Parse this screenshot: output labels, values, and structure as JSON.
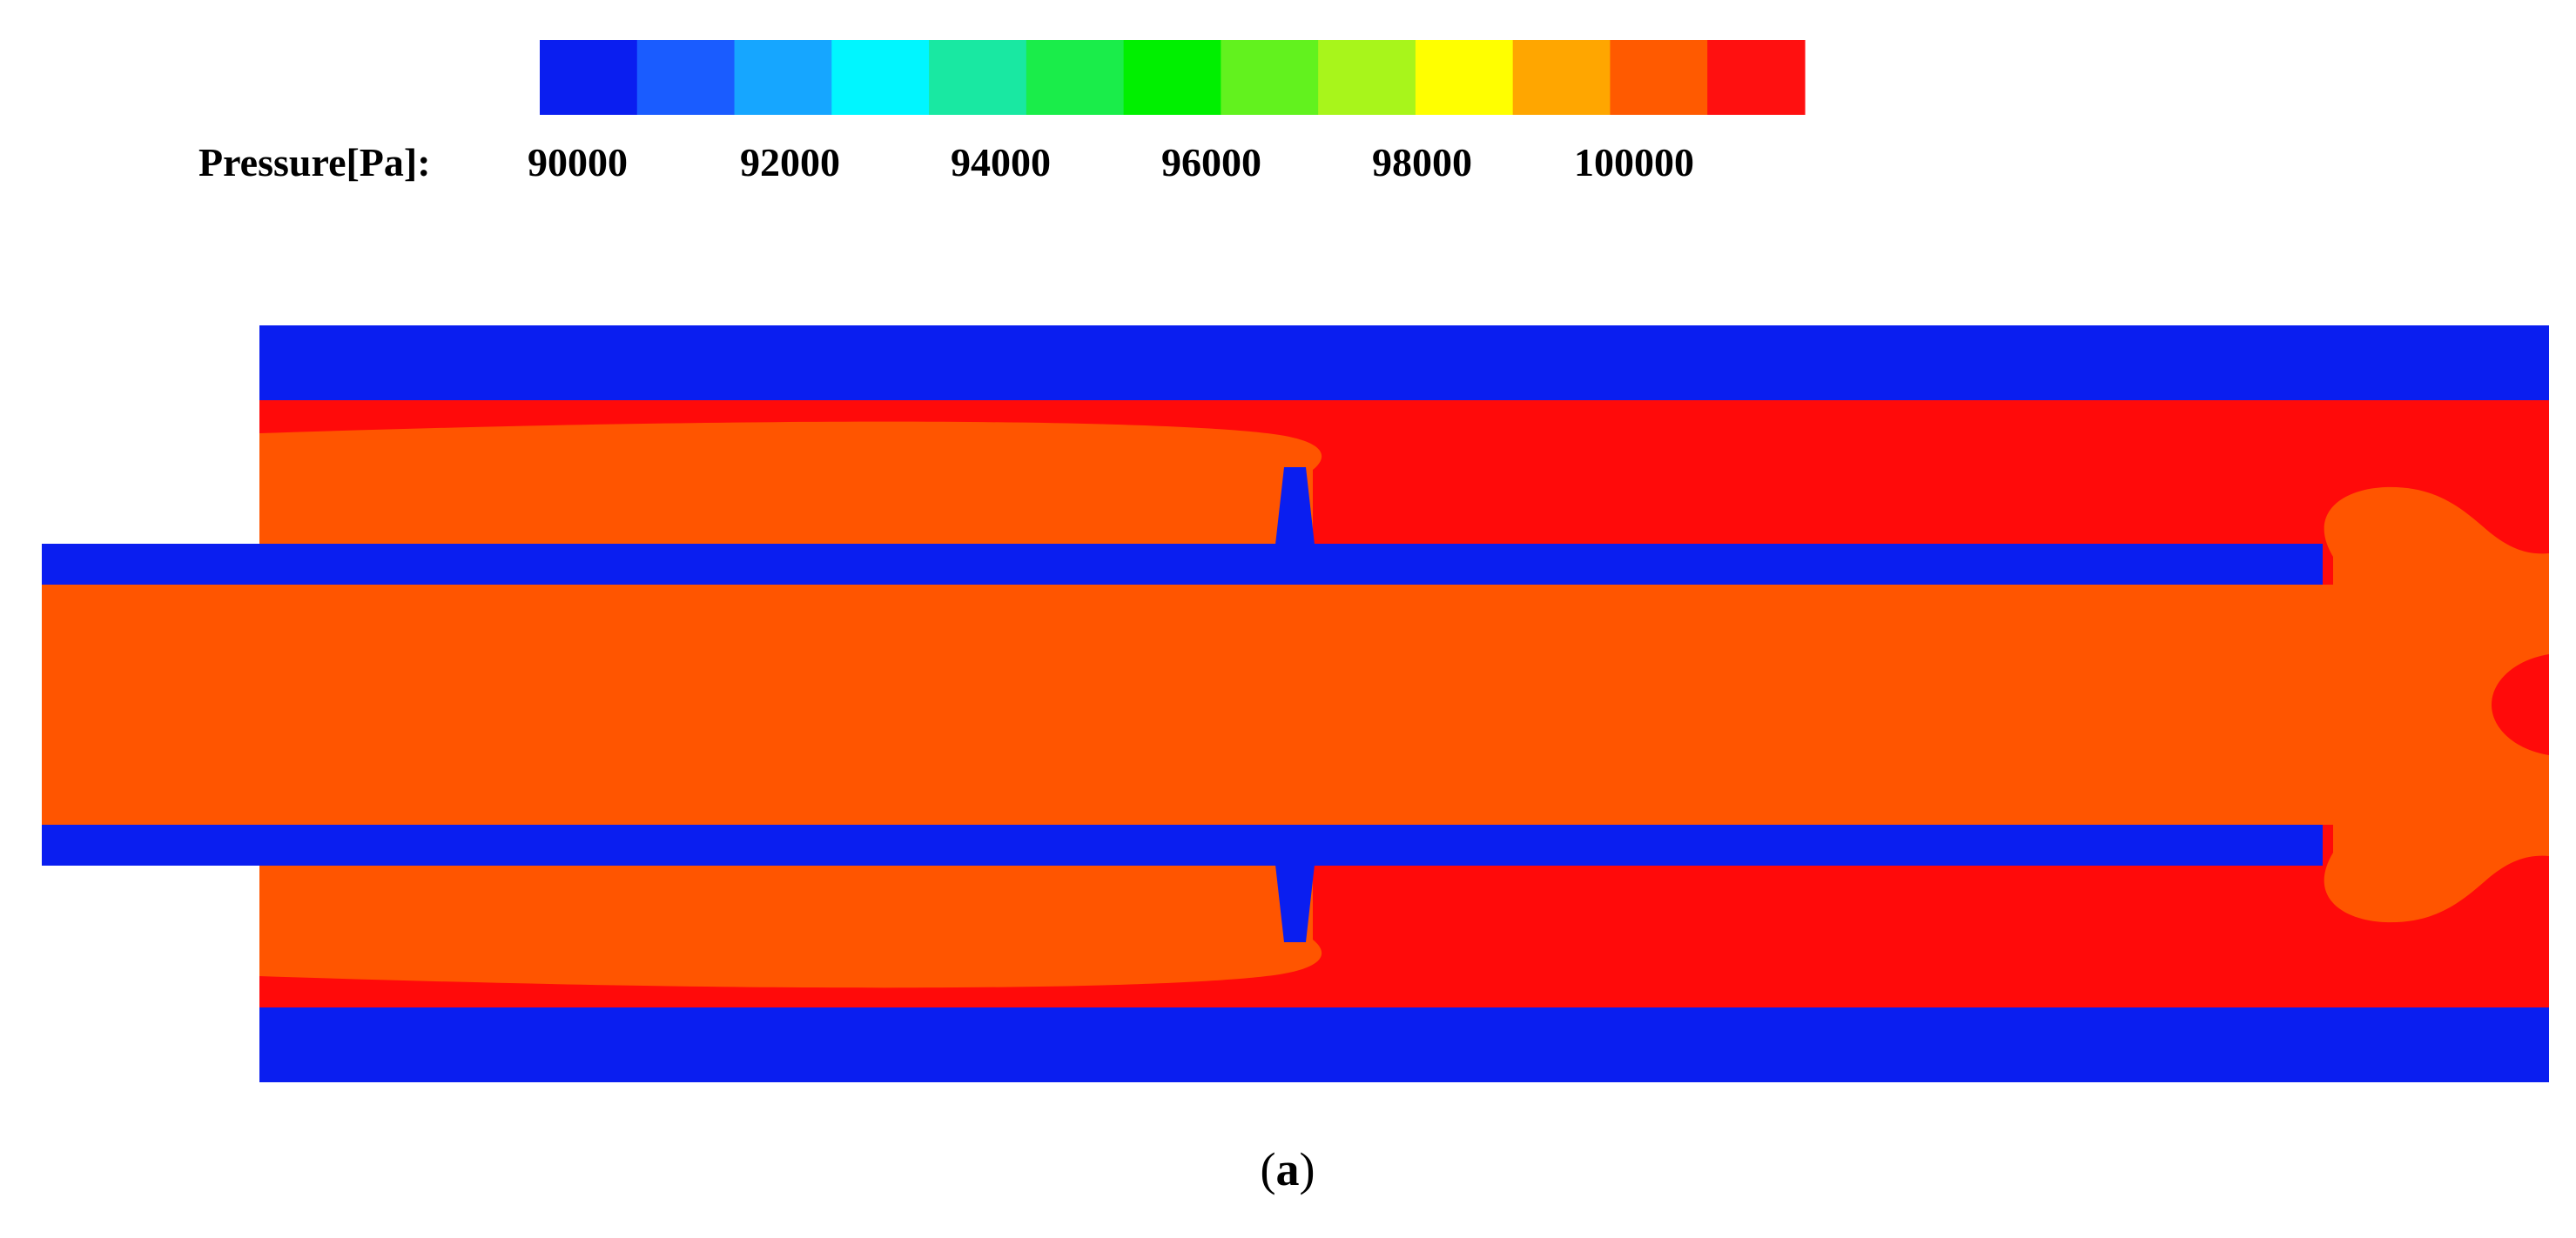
{
  "legend": {
    "title": "Pressure[Pa]:",
    "tick_labels": [
      "90000",
      "92000",
      "94000",
      "96000",
      "98000",
      "100000"
    ],
    "swatches": [
      {
        "color": "#0a1ef0",
        "level": "band-1"
      },
      {
        "color": "#1a5cff",
        "level": "band-2"
      },
      {
        "color": "#16a6ff",
        "level": "band-3"
      },
      {
        "color": "#00f6ff",
        "level": "band-4"
      },
      {
        "color": "#19e8a2",
        "level": "band-5"
      },
      {
        "color": "#1aed4a",
        "level": "band-6"
      },
      {
        "color": "#00f000",
        "level": "band-7"
      },
      {
        "color": "#62f21e",
        "level": "band-8"
      },
      {
        "color": "#a8f51b",
        "level": "band-9"
      },
      {
        "color": "#ffff00",
        "level": "band-10"
      },
      {
        "color": "#ffa600",
        "level": "band-11"
      },
      {
        "color": "#ff5a00",
        "level": "band-12"
      },
      {
        "color": "#ff1010",
        "level": "band-13"
      }
    ]
  },
  "field_colors": {
    "wall": "#0a1ef0",
    "high_pressure": "#ff0a0a",
    "mid_pressure": "#ff5500"
  },
  "caption": {
    "open": "(",
    "letter": "a",
    "close": ")"
  }
}
